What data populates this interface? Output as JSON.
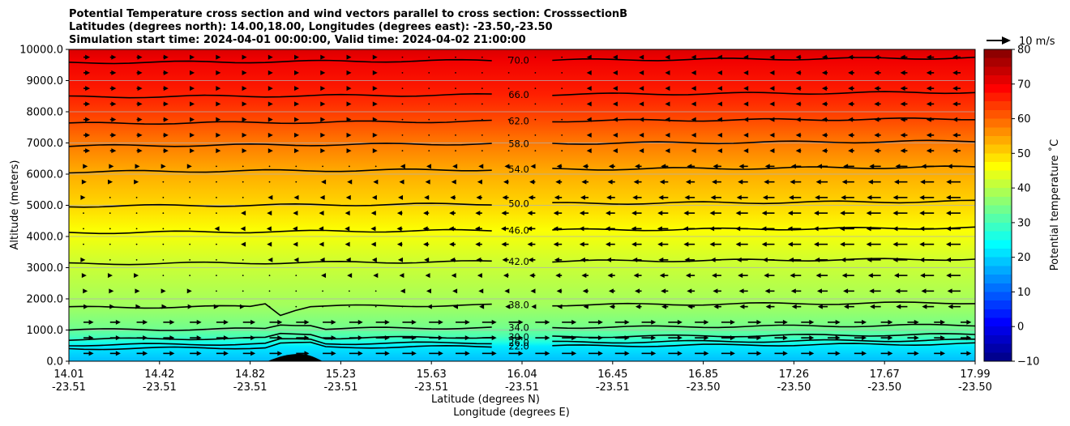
{
  "chart_data": {
    "type": "heatmap",
    "title_lines": [
      "Potential Temperature cross section and wind vectors parallel to cross section: CrosssectionB",
      "Latitudes (degrees north): 14.00,18.00, Longitudes (degrees east): -23.50,-23.50",
      "Simulation start time: 2024-04-01 00:00:00, Valid time: 2024-04-02 21:00:00"
    ],
    "ylabel": "Altitude (meters)",
    "xlabel_lat": "Latitude (degrees N)",
    "xlabel_lon": "Longitude (degrees E)",
    "ylim": [
      0,
      10000
    ],
    "xlim": [
      14.01,
      17.99
    ],
    "yticks": [
      "0.0",
      "1000.0",
      "2000.0",
      "3000.0",
      "4000.0",
      "5000.0",
      "6000.0",
      "7000.0",
      "8000.0",
      "9000.0",
      "10000.0"
    ],
    "xticks": [
      {
        "lat": "14.01",
        "lon": "-23.51"
      },
      {
        "lat": "14.42",
        "lon": "-23.51"
      },
      {
        "lat": "14.82",
        "lon": "-23.51"
      },
      {
        "lat": "15.23",
        "lon": "-23.51"
      },
      {
        "lat": "15.63",
        "lon": "-23.51"
      },
      {
        "lat": "16.04",
        "lon": "-23.51"
      },
      {
        "lat": "16.45",
        "lon": "-23.51"
      },
      {
        "lat": "16.85",
        "lon": "-23.50"
      },
      {
        "lat": "17.26",
        "lon": "-23.50"
      },
      {
        "lat": "17.67",
        "lon": "-23.50"
      },
      {
        "lat": "17.99",
        "lon": "-23.50"
      }
    ],
    "contour_levels": [
      {
        "value": 22,
        "label": "22.0",
        "altitude": 480
      },
      {
        "value": 26,
        "label": "26.0",
        "altitude": 600
      },
      {
        "value": 30,
        "label": "30.0",
        "altitude": 780
      },
      {
        "value": 34,
        "label": "34.0",
        "altitude": 1080
      },
      {
        "value": 38,
        "label": "38.0",
        "altitude": 1800
      },
      {
        "value": 42,
        "label": "42.0",
        "altitude": 3200
      },
      {
        "value": 46,
        "label": "46.0",
        "altitude": 4200
      },
      {
        "value": 50,
        "label": "50.0",
        "altitude": 5050
      },
      {
        "value": 54,
        "label": "54.0",
        "altitude": 6150
      },
      {
        "value": 58,
        "label": "58.0",
        "altitude": 6980
      },
      {
        "value": 62,
        "label": "62.0",
        "altitude": 7700
      },
      {
        "value": 66,
        "label": "66.0",
        "altitude": 8550
      },
      {
        "value": 70,
        "label": "70.0",
        "altitude": 9650
      }
    ],
    "colorbar": {
      "label": "Potential temperature ˚C",
      "range": [
        -10,
        80
      ],
      "ticks": [
        "−10",
        "0",
        "10",
        "20",
        "30",
        "40",
        "50",
        "60",
        "70",
        "80"
      ]
    },
    "wind_reference": {
      "label": "10 m/s"
    },
    "colormap": "jet",
    "grid": true
  }
}
